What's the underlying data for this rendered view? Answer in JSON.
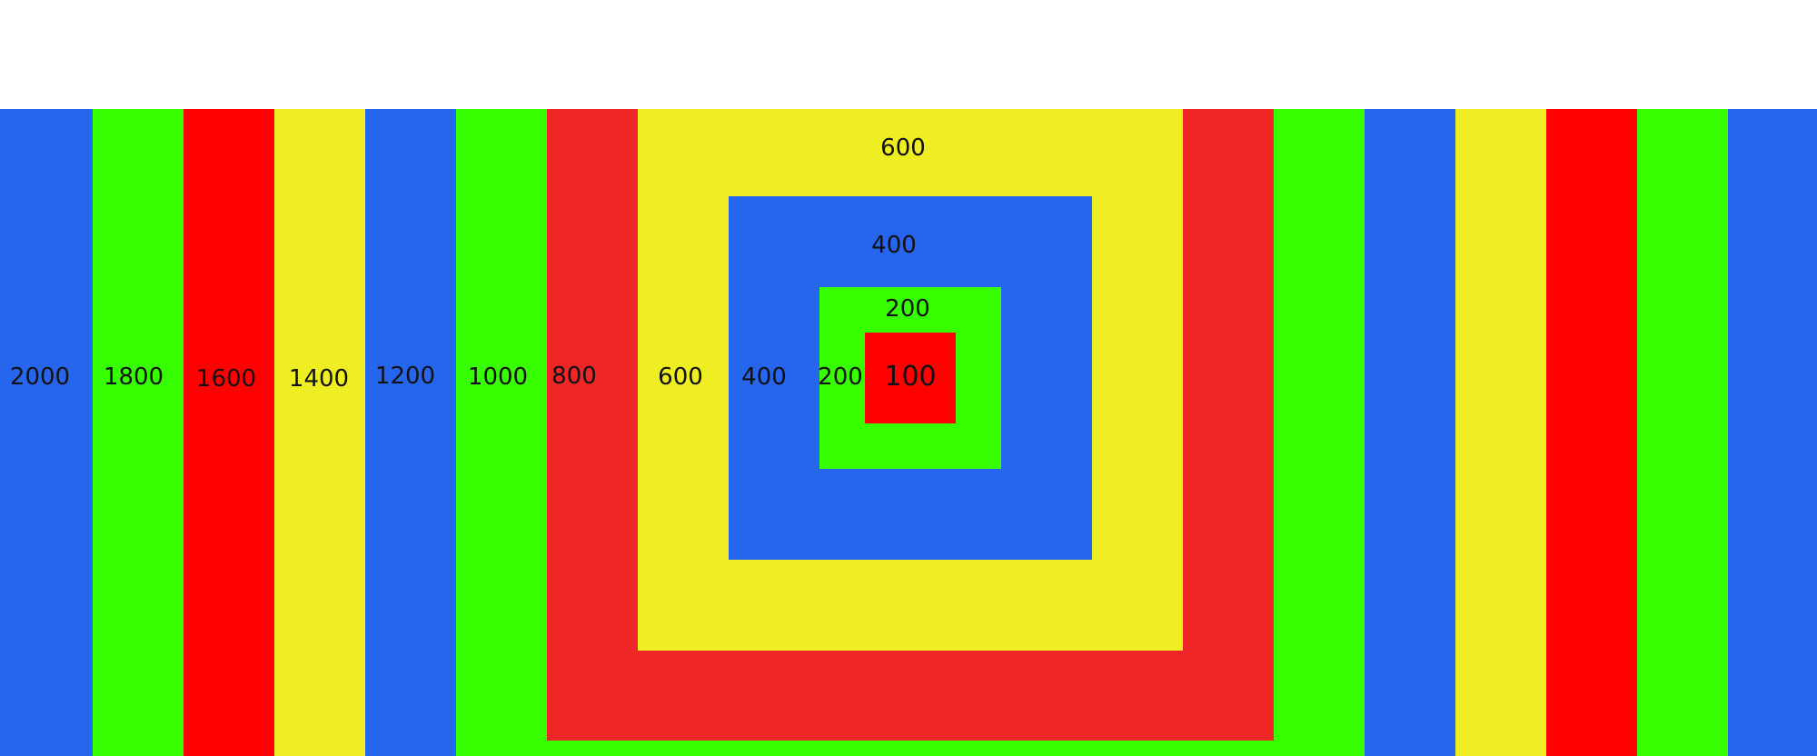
{
  "colors": {
    "blue": "#2665ee",
    "green": "#37ff00",
    "red": "#ff0000",
    "yellow": "#eeee22",
    "red_inner": "#ee2626"
  },
  "side_labels": [
    "2000",
    "1800",
    "1600",
    "1400",
    "1200",
    "1000",
    "800",
    "600",
    "400",
    "200"
  ],
  "center_label": "100",
  "top_labels": [
    "600",
    "400",
    "200"
  ]
}
